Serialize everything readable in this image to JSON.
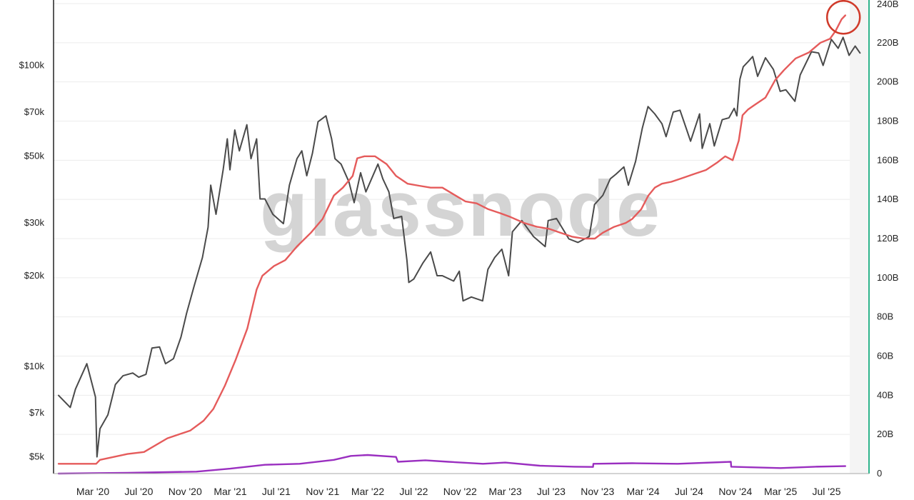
{
  "chart_data": {
    "type": "line",
    "watermark": "glassnode",
    "x_tick_labels": [
      "Mar '20",
      "Jul '20",
      "Nov '20",
      "Mar '21",
      "Jul '21",
      "Nov '21",
      "Mar '22",
      "Jul '22",
      "Nov '22",
      "Mar '23",
      "Jul '23",
      "Nov '23",
      "Mar '24",
      "Jul '24",
      "Nov '24",
      "Mar '25",
      "Jul '25"
    ],
    "x_range": [
      "2019-12-01",
      "2025-10-01"
    ],
    "y_left": {
      "scale": "log",
      "range": [
        4400,
        165000
      ],
      "ticks": [
        {
          "value": 100000,
          "label": "$100k"
        },
        {
          "value": 70000,
          "label": "$70k"
        },
        {
          "value": 50000,
          "label": "$50k"
        },
        {
          "value": 30000,
          "label": "$30k"
        },
        {
          "value": 20000,
          "label": "$20k"
        },
        {
          "value": 10000,
          "label": "$10k"
        },
        {
          "value": 7000,
          "label": "$7k"
        },
        {
          "value": 5000,
          "label": "$5k"
        }
      ]
    },
    "y_right": {
      "scale": "linear",
      "range": [
        0,
        240
      ],
      "ticks": [
        {
          "value": 240,
          "label": "240B"
        },
        {
          "value": 220,
          "label": "220B"
        },
        {
          "value": 200,
          "label": "200B"
        },
        {
          "value": 180,
          "label": "180B"
        },
        {
          "value": 160,
          "label": "160B"
        },
        {
          "value": 140,
          "label": "140B"
        },
        {
          "value": 120,
          "label": "120B"
        },
        {
          "value": 100,
          "label": "100B"
        },
        {
          "value": 80,
          "label": "80B"
        },
        {
          "value": 60,
          "label": "60B"
        },
        {
          "value": 40,
          "label": "40B"
        },
        {
          "value": 20,
          "label": "20B"
        },
        {
          "value": 0,
          "label": "0"
        }
      ]
    },
    "series": [
      {
        "axis": "left",
        "color": "#4a4a4a",
        "points": [
          [
            "2019-12-01",
            8000
          ],
          [
            "2020-01-01",
            7300
          ],
          [
            "2020-01-15",
            8400
          ],
          [
            "2020-02-14",
            10200
          ],
          [
            "2020-03-08",
            7900
          ],
          [
            "2020-03-12",
            5000
          ],
          [
            "2020-03-20",
            6200
          ],
          [
            "2020-04-10",
            6900
          ],
          [
            "2020-04-30",
            8700
          ],
          [
            "2020-05-20",
            9300
          ],
          [
            "2020-06-15",
            9500
          ],
          [
            "2020-07-01",
            9200
          ],
          [
            "2020-07-20",
            9400
          ],
          [
            "2020-08-05",
            11500
          ],
          [
            "2020-08-25",
            11600
          ],
          [
            "2020-09-10",
            10200
          ],
          [
            "2020-10-01",
            10600
          ],
          [
            "2020-10-21",
            12500
          ],
          [
            "2020-11-05",
            15000
          ],
          [
            "2020-11-25",
            18500
          ],
          [
            "2020-12-17",
            23000
          ],
          [
            "2021-01-01",
            29000
          ],
          [
            "2021-01-08",
            40000
          ],
          [
            "2021-01-22",
            32000
          ],
          [
            "2021-02-10",
            45000
          ],
          [
            "2021-02-21",
            57000
          ],
          [
            "2021-02-28",
            45000
          ],
          [
            "2021-03-13",
            61000
          ],
          [
            "2021-03-25",
            52000
          ],
          [
            "2021-04-14",
            63500
          ],
          [
            "2021-04-25",
            49000
          ],
          [
            "2021-05-10",
            57000
          ],
          [
            "2021-05-19",
            36000
          ],
          [
            "2021-06-01",
            36000
          ],
          [
            "2021-06-22",
            32000
          ],
          [
            "2021-07-20",
            29800
          ],
          [
            "2021-08-05",
            40000
          ],
          [
            "2021-08-25",
            49000
          ],
          [
            "2021-09-07",
            52000
          ],
          [
            "2021-09-20",
            43000
          ],
          [
            "2021-10-05",
            51000
          ],
          [
            "2021-10-20",
            65000
          ],
          [
            "2021-11-10",
            68000
          ],
          [
            "2021-11-25",
            57000
          ],
          [
            "2021-12-04",
            49000
          ],
          [
            "2021-12-20",
            47000
          ],
          [
            "2022-01-10",
            41000
          ],
          [
            "2022-01-24",
            35000
          ],
          [
            "2022-02-10",
            44000
          ],
          [
            "2022-02-24",
            38000
          ],
          [
            "2022-03-28",
            47000
          ],
          [
            "2022-04-10",
            42000
          ],
          [
            "2022-04-26",
            38000
          ],
          [
            "2022-05-09",
            31000
          ],
          [
            "2022-05-30",
            31500
          ],
          [
            "2022-06-13",
            22500
          ],
          [
            "2022-06-18",
            19000
          ],
          [
            "2022-07-01",
            19500
          ],
          [
            "2022-07-25",
            22000
          ],
          [
            "2022-08-15",
            24000
          ],
          [
            "2022-09-01",
            20000
          ],
          [
            "2022-09-15",
            20000
          ],
          [
            "2022-10-15",
            19200
          ],
          [
            "2022-10-30",
            20700
          ],
          [
            "2022-11-09",
            16500
          ],
          [
            "2022-12-01",
            17000
          ],
          [
            "2022-12-31",
            16500
          ],
          [
            "2023-01-14",
            21000
          ],
          [
            "2023-02-01",
            23000
          ],
          [
            "2023-02-20",
            24500
          ],
          [
            "2023-03-10",
            20000
          ],
          [
            "2023-03-20",
            28000
          ],
          [
            "2023-04-14",
            30500
          ],
          [
            "2023-05-15",
            27000
          ],
          [
            "2023-06-15",
            25000
          ],
          [
            "2023-06-23",
            30500
          ],
          [
            "2023-07-15",
            31000
          ],
          [
            "2023-08-17",
            26500
          ],
          [
            "2023-09-10",
            25800
          ],
          [
            "2023-10-10",
            27000
          ],
          [
            "2023-10-24",
            34500
          ],
          [
            "2023-11-15",
            37000
          ],
          [
            "2023-12-05",
            42000
          ],
          [
            "2023-12-20",
            43500
          ],
          [
            "2024-01-10",
            46000
          ],
          [
            "2024-01-22",
            40000
          ],
          [
            "2024-02-10",
            48000
          ],
          [
            "2024-02-28",
            62000
          ],
          [
            "2024-03-14",
            73000
          ],
          [
            "2024-04-01",
            69000
          ],
          [
            "2024-04-20",
            64000
          ],
          [
            "2024-05-01",
            58000
          ],
          [
            "2024-05-20",
            70000
          ],
          [
            "2024-06-07",
            71000
          ],
          [
            "2024-06-25",
            61000
          ],
          [
            "2024-07-05",
            56000
          ],
          [
            "2024-07-29",
            69000
          ],
          [
            "2024-08-05",
            53000
          ],
          [
            "2024-08-25",
            64000
          ],
          [
            "2024-09-06",
            54000
          ],
          [
            "2024-09-27",
            66000
          ],
          [
            "2024-10-15",
            67000
          ],
          [
            "2024-10-29",
            72000
          ],
          [
            "2024-11-05",
            68000
          ],
          [
            "2024-11-13",
            90000
          ],
          [
            "2024-11-22",
            99000
          ],
          [
            "2024-12-05",
            103000
          ],
          [
            "2024-12-17",
            107000
          ],
          [
            "2024-12-30",
            92000
          ],
          [
            "2025-01-20",
            106000
          ],
          [
            "2025-02-10",
            97000
          ],
          [
            "2025-02-28",
            82000
          ],
          [
            "2025-03-15",
            83000
          ],
          [
            "2025-04-08",
            76000
          ],
          [
            "2025-04-22",
            93000
          ],
          [
            "2025-05-22",
            111000
          ],
          [
            "2025-06-10",
            110000
          ],
          [
            "2025-06-22",
            100000
          ],
          [
            "2025-07-14",
            122000
          ],
          [
            "2025-08-01",
            114000
          ],
          [
            "2025-08-14",
            124000
          ],
          [
            "2025-08-30",
            108000
          ],
          [
            "2025-09-15",
            116000
          ],
          [
            "2025-09-28",
            110000
          ]
        ]
      },
      {
        "axis": "right",
        "color": "#e55b5b",
        "points": [
          [
            "2019-12-01",
            5
          ],
          [
            "2020-03-10",
            5
          ],
          [
            "2020-03-20",
            7
          ],
          [
            "2020-06-01",
            10
          ],
          [
            "2020-07-15",
            11
          ],
          [
            "2020-09-15",
            18
          ],
          [
            "2020-11-15",
            22
          ],
          [
            "2020-12-20",
            27
          ],
          [
            "2021-01-15",
            33
          ],
          [
            "2021-02-15",
            45
          ],
          [
            "2021-03-15",
            58
          ],
          [
            "2021-04-15",
            74
          ],
          [
            "2021-05-10",
            94
          ],
          [
            "2021-05-25",
            101
          ],
          [
            "2021-06-25",
            106
          ],
          [
            "2021-07-25",
            109
          ],
          [
            "2021-08-25",
            116
          ],
          [
            "2021-10-01",
            123
          ],
          [
            "2021-11-01",
            130
          ],
          [
            "2021-12-01",
            142
          ],
          [
            "2021-12-25",
            146
          ],
          [
            "2022-01-20",
            152
          ],
          [
            "2022-02-01",
            161
          ],
          [
            "2022-02-20",
            162
          ],
          [
            "2022-03-20",
            162
          ],
          [
            "2022-04-20",
            158
          ],
          [
            "2022-05-15",
            152
          ],
          [
            "2022-06-15",
            148
          ],
          [
            "2022-07-15",
            147
          ],
          [
            "2022-08-15",
            146
          ],
          [
            "2022-09-15",
            146
          ],
          [
            "2022-10-20",
            142
          ],
          [
            "2022-11-15",
            139
          ],
          [
            "2022-12-15",
            138
          ],
          [
            "2023-01-15",
            135
          ],
          [
            "2023-02-15",
            133
          ],
          [
            "2023-03-15",
            131
          ],
          [
            "2023-04-20",
            128
          ],
          [
            "2023-05-25",
            126
          ],
          [
            "2023-06-25",
            125
          ],
          [
            "2023-07-25",
            123
          ],
          [
            "2023-08-25",
            121
          ],
          [
            "2023-09-25",
            120
          ],
          [
            "2023-10-25",
            120
          ],
          [
            "2023-11-15",
            123
          ],
          [
            "2023-12-15",
            126
          ],
          [
            "2024-01-15",
            128
          ],
          [
            "2024-02-01",
            130
          ],
          [
            "2024-02-25",
            135
          ],
          [
            "2024-03-15",
            142
          ],
          [
            "2024-04-01",
            146
          ],
          [
            "2024-04-20",
            148
          ],
          [
            "2024-05-15",
            149
          ],
          [
            "2024-06-15",
            151
          ],
          [
            "2024-07-15",
            153
          ],
          [
            "2024-08-15",
            155
          ],
          [
            "2024-09-15",
            159
          ],
          [
            "2024-10-05",
            162
          ],
          [
            "2024-10-25",
            160
          ],
          [
            "2024-11-10",
            170
          ],
          [
            "2024-11-20",
            183
          ],
          [
            "2024-12-05",
            186
          ],
          [
            "2024-12-20",
            188
          ],
          [
            "2025-01-20",
            192
          ],
          [
            "2025-02-15",
            201
          ],
          [
            "2025-03-10",
            206
          ],
          [
            "2025-04-10",
            212
          ],
          [
            "2025-05-15",
            215
          ],
          [
            "2025-06-15",
            220
          ],
          [
            "2025-07-10",
            222
          ],
          [
            "2025-07-25",
            226
          ],
          [
            "2025-08-10",
            232
          ],
          [
            "2025-08-20",
            234
          ]
        ]
      },
      {
        "axis": "right",
        "color": "#9a2fc0",
        "points": [
          [
            "2019-12-01",
            0
          ],
          [
            "2020-06-01",
            0.4
          ],
          [
            "2020-12-01",
            1
          ],
          [
            "2021-03-01",
            2.5
          ],
          [
            "2021-06-01",
            4.5
          ],
          [
            "2021-09-01",
            5
          ],
          [
            "2021-12-01",
            7
          ],
          [
            "2022-01-15",
            9
          ],
          [
            "2022-03-01",
            9.5
          ],
          [
            "2022-05-15",
            8.5
          ],
          [
            "2022-05-20",
            6
          ],
          [
            "2022-08-01",
            6.8
          ],
          [
            "2022-10-01",
            6
          ],
          [
            "2023-01-01",
            5
          ],
          [
            "2023-03-01",
            5.6
          ],
          [
            "2023-06-01",
            4
          ],
          [
            "2023-09-01",
            3.5
          ],
          [
            "2023-10-20",
            3.4
          ],
          [
            "2023-10-21",
            5
          ],
          [
            "2024-02-01",
            5.3
          ],
          [
            "2024-06-01",
            5
          ],
          [
            "2024-10-20",
            6
          ],
          [
            "2024-10-21",
            3.5
          ],
          [
            "2025-03-01",
            2.8
          ],
          [
            "2025-06-01",
            3.5
          ],
          [
            "2025-08-20",
            3.8
          ]
        ]
      }
    ],
    "annotations": [
      {
        "type": "circle",
        "color": "#d03a2a",
        "date": "2025-08-15",
        "value_right": 233
      }
    ]
  }
}
